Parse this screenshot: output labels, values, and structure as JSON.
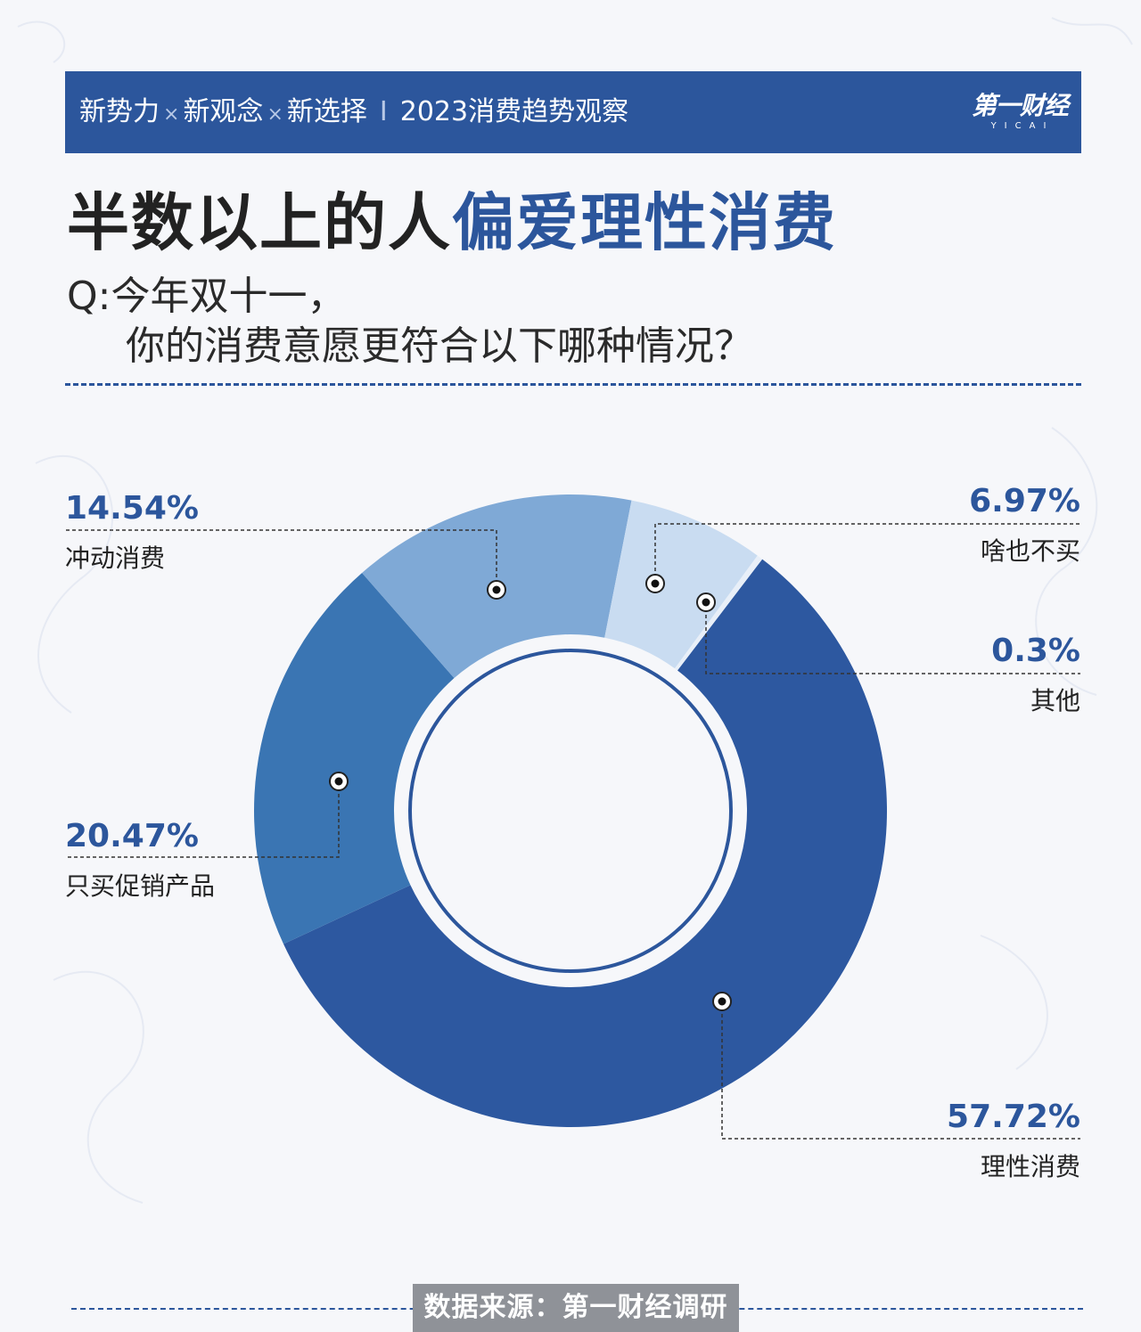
{
  "header": {
    "tag1": "新势力",
    "tag2": "新观念",
    "tag3": "新选择",
    "separator_x": "×",
    "separator_bar": "I",
    "topic": "2023消费趋势观察",
    "logo_text": "第一财经",
    "logo_sub": "YICAI"
  },
  "headline": {
    "part1": "半数以上的人",
    "part2": "偏爱理性消费"
  },
  "question": {
    "line1": "Q:今年双十一，",
    "line2": "你的消费意愿更符合以下哪种情况？"
  },
  "source": "数据来源：第一财经调研",
  "colors": {
    "brand_blue": "#2c569c",
    "rational": "#2d58a0",
    "promo": "#3a75b3",
    "impulse": "#7fa9d6",
    "nothing": "#c9dcf1",
    "other": "#e8eff8"
  },
  "chart_data": {
    "type": "pie",
    "subtype": "donut",
    "title": "半数以上的人偏爱理性消费",
    "unit": "%",
    "slices": [
      {
        "label": "理性消费",
        "value": 57.72,
        "value_label": "57.72%"
      },
      {
        "label": "只买促销产品",
        "value": 20.47,
        "value_label": "20.47%"
      },
      {
        "label": "冲动消费",
        "value": 14.54,
        "value_label": "14.54%"
      },
      {
        "label": "啥也不买",
        "value": 6.97,
        "value_label": "6.97%"
      },
      {
        "label": "其他",
        "value": 0.3,
        "value_label": "0.3%"
      }
    ]
  }
}
